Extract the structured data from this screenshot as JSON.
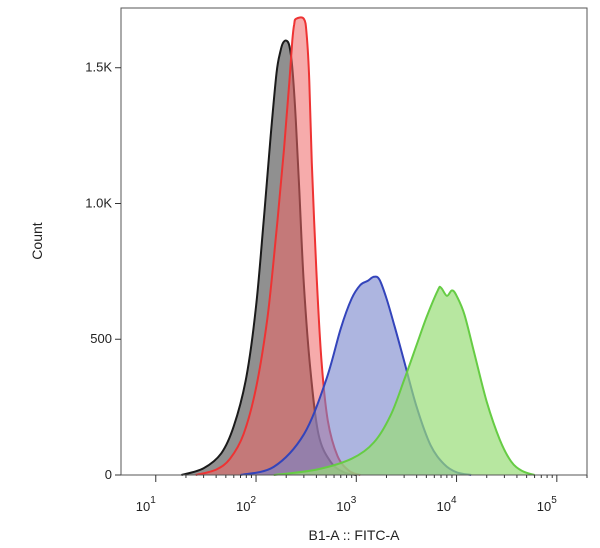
{
  "chart_data": {
    "type": "area",
    "title": "",
    "xlabel": "B1-A :: FITC-A",
    "ylabel": "Count",
    "x_scale": "log",
    "xlim": [
      4.5,
      200000
    ],
    "ylim": [
      0,
      1720
    ],
    "y_ticks": [
      {
        "value": 0,
        "label": "0"
      },
      {
        "value": 500,
        "label": "500"
      },
      {
        "value": 1000,
        "label": "1.0K"
      },
      {
        "value": 1500,
        "label": "1.5K"
      }
    ],
    "x_ticks": [
      {
        "value": 10,
        "base": "10",
        "exp": "1"
      },
      {
        "value": 100,
        "base": "10",
        "exp": "2"
      },
      {
        "value": 1000,
        "base": "10",
        "exp": "3"
      },
      {
        "value": 10000,
        "base": "10",
        "exp": "4"
      },
      {
        "value": 100000,
        "base": "10",
        "exp": "5"
      }
    ],
    "series": [
      {
        "name": "black",
        "stroke": "#1a1a1a",
        "fill": "#6b6b6b",
        "fill_opacity": 0.75,
        "x": [
          18,
          30,
          45,
          60,
          80,
          100,
          120,
          140,
          160,
          175,
          185,
          200,
          215,
          230,
          250,
          270,
          300,
          350,
          420,
          550,
          750,
          1000
        ],
        "y": [
          0,
          25,
          80,
          180,
          360,
          620,
          950,
          1250,
          1480,
          1560,
          1590,
          1600,
          1580,
          1500,
          1300,
          1050,
          700,
          380,
          150,
          50,
          10,
          0
        ]
      },
      {
        "name": "red",
        "stroke": "#ee3333",
        "fill": "#ee6666",
        "fill_opacity": 0.55,
        "x": [
          25,
          40,
          55,
          75,
          100,
          130,
          160,
          190,
          215,
          230,
          240,
          250,
          300,
          320,
          340,
          360,
          400,
          450,
          520,
          650,
          850,
          1100
        ],
        "y": [
          0,
          20,
          60,
          150,
          320,
          580,
          900,
          1200,
          1450,
          1600,
          1660,
          1680,
          1680,
          1620,
          1450,
          1150,
          750,
          420,
          200,
          70,
          15,
          0
        ]
      },
      {
        "name": "blue",
        "stroke": "#3344bb",
        "fill": "#7784cc",
        "fill_opacity": 0.6,
        "x": [
          70,
          150,
          300,
          500,
          700,
          900,
          1100,
          1300,
          1500,
          1700,
          2000,
          2400,
          3000,
          4000,
          5500,
          7500,
          10000,
          14000
        ],
        "y": [
          0,
          30,
          150,
          350,
          540,
          650,
          700,
          715,
          730,
          720,
          650,
          550,
          420,
          250,
          110,
          40,
          10,
          0
        ]
      },
      {
        "name": "green",
        "stroke": "#66cc44",
        "fill": "#99dd77",
        "fill_opacity": 0.7,
        "x": [
          150,
          400,
          900,
          1500,
          2200,
          3000,
          4000,
          5000,
          6500,
          7000,
          8000,
          9000,
          10000,
          12000,
          15000,
          20000,
          27000,
          35000,
          45000,
          60000
        ],
        "y": [
          0,
          20,
          60,
          120,
          220,
          350,
          480,
          580,
          680,
          690,
          660,
          680,
          660,
          590,
          450,
          270,
          130,
          50,
          15,
          0
        ]
      }
    ]
  }
}
